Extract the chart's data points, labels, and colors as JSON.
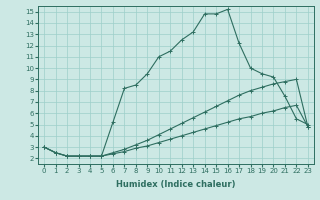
{
  "xlabel": "Humidex (Indice chaleur)",
  "ylabel": "",
  "bg_color": "#cce8e4",
  "line_color": "#2e6e60",
  "xlim": [
    -0.5,
    23.5
  ],
  "ylim": [
    1.5,
    15.5
  ],
  "yticks": [
    2,
    3,
    4,
    5,
    6,
    7,
    8,
    9,
    10,
    11,
    12,
    13,
    14,
    15
  ],
  "xticks": [
    0,
    1,
    2,
    3,
    4,
    5,
    6,
    7,
    8,
    9,
    10,
    11,
    12,
    13,
    14,
    15,
    16,
    17,
    18,
    19,
    20,
    21,
    22,
    23
  ],
  "series1_x": [
    0,
    1,
    2,
    3,
    4,
    5,
    6,
    7,
    8,
    9,
    10,
    11,
    12,
    13,
    14,
    15,
    16,
    17,
    18,
    19,
    20,
    21,
    22,
    23
  ],
  "series1_y": [
    3.0,
    2.5,
    2.2,
    2.2,
    2.2,
    2.2,
    5.2,
    8.2,
    8.5,
    9.5,
    11.0,
    11.5,
    12.5,
    13.2,
    14.8,
    14.8,
    15.2,
    12.2,
    10.0,
    9.5,
    9.2,
    7.5,
    5.5,
    5.0
  ],
  "series2_x": [
    0,
    1,
    2,
    3,
    4,
    5,
    6,
    7,
    8,
    9,
    10,
    11,
    12,
    13,
    14,
    15,
    16,
    17,
    18,
    19,
    20,
    21,
    22,
    23
  ],
  "series2_y": [
    3.0,
    2.5,
    2.2,
    2.2,
    2.2,
    2.2,
    2.5,
    2.8,
    3.2,
    3.6,
    4.1,
    4.6,
    5.1,
    5.6,
    6.1,
    6.6,
    7.1,
    7.6,
    8.0,
    8.3,
    8.6,
    8.8,
    9.0,
    4.8
  ],
  "series3_x": [
    0,
    1,
    2,
    3,
    4,
    5,
    6,
    7,
    8,
    9,
    10,
    11,
    12,
    13,
    14,
    15,
    16,
    17,
    18,
    19,
    20,
    21,
    22,
    23
  ],
  "series3_y": [
    3.0,
    2.5,
    2.2,
    2.2,
    2.2,
    2.2,
    2.4,
    2.6,
    2.9,
    3.1,
    3.4,
    3.7,
    4.0,
    4.3,
    4.6,
    4.9,
    5.2,
    5.5,
    5.7,
    6.0,
    6.2,
    6.5,
    6.7,
    4.8
  ],
  "grid_color": "#9dcfca",
  "tick_fontsize": 5,
  "xlabel_fontsize": 6
}
